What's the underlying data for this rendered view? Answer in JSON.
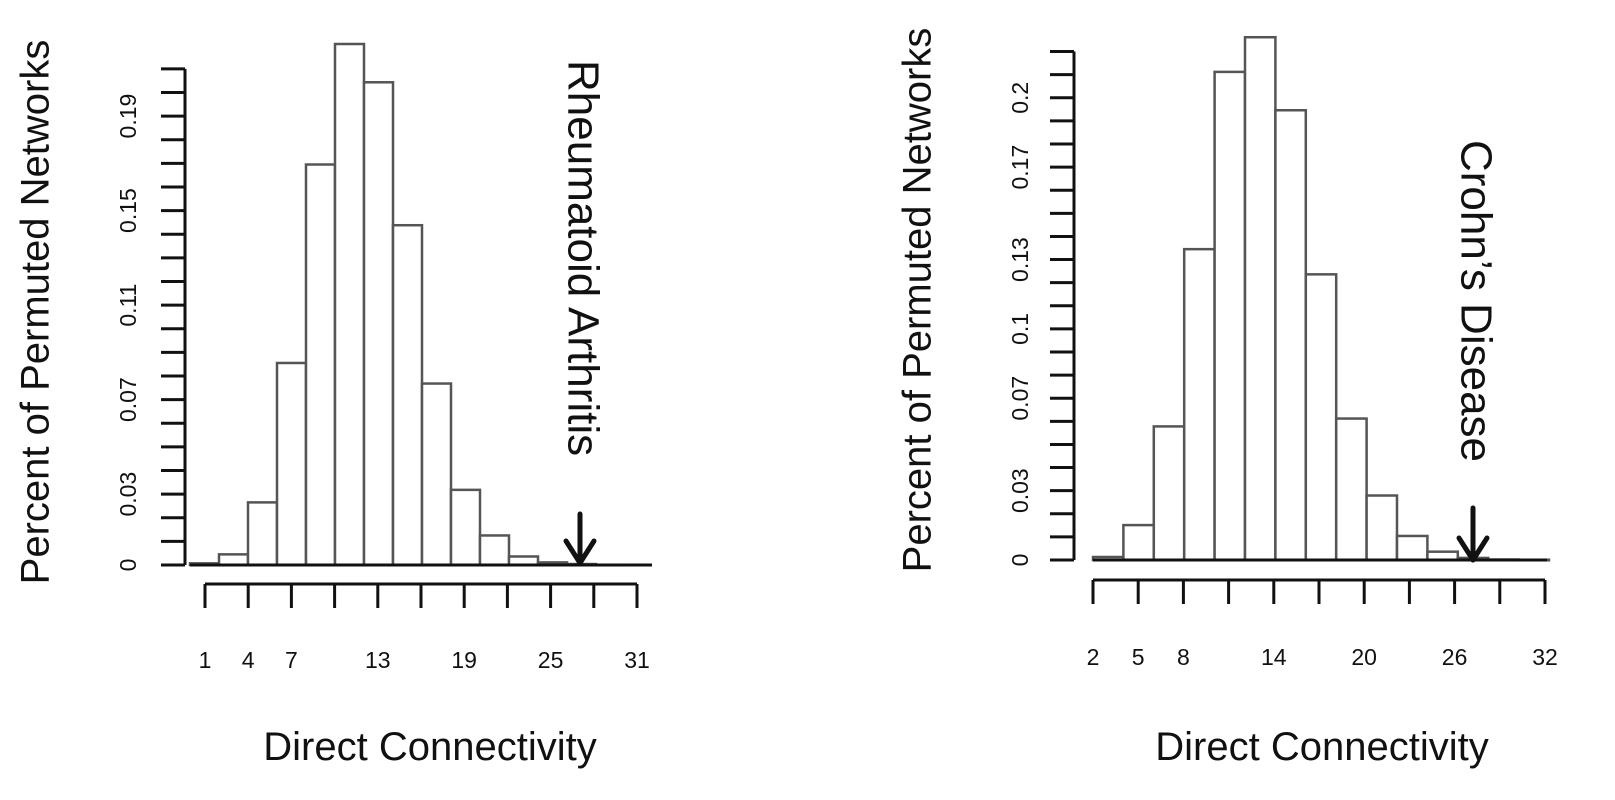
{
  "chart_data": [
    {
      "type": "bar",
      "title": "",
      "xlabel": "Direct Connectivity",
      "ylabel": "Percent of Permuted Networks",
      "x_ticks": [
        "1",
        "4",
        "7",
        "13",
        "19",
        "25",
        "31"
      ],
      "y_ticks": [
        "0",
        "0.03",
        "0.07",
        "0.11",
        "0.15",
        "0.19"
      ],
      "ylim": [
        0,
        0.215
      ],
      "bin_edges": [
        0,
        2,
        4,
        6,
        8,
        10,
        12,
        14,
        16,
        18,
        20,
        22,
        24,
        26,
        28,
        30
      ],
      "values": [
        0.0007,
        0.0045,
        0.0265,
        0.0855,
        0.1695,
        0.2205,
        0.2043,
        0.1438,
        0.0768,
        0.0318,
        0.0125,
        0.0036,
        0.0011,
        0.0004,
        0.0001
      ],
      "annotation": {
        "label": "Rheumatoid Arthritis",
        "x": 26.7
      },
      "grid": false
    },
    {
      "type": "bar",
      "title": "",
      "xlabel": "Direct Connectivity",
      "ylabel": "Percent of Permuted Networks",
      "x_ticks": [
        "2",
        "5",
        "8",
        "14",
        "20",
        "26",
        "32"
      ],
      "y_ticks": [
        "0",
        "0.03",
        "0.07",
        "0.1",
        "0.13",
        "0.17",
        "0.2"
      ],
      "ylim": [
        0,
        0.225
      ],
      "bin_edges": [
        2,
        4,
        6,
        8,
        10,
        12,
        14,
        16,
        18,
        20,
        22,
        24,
        26,
        28,
        30,
        32
      ],
      "values": [
        0.0013,
        0.0151,
        0.0578,
        0.1345,
        0.2112,
        0.2262,
        0.1946,
        0.1236,
        0.0612,
        0.0279,
        0.0104,
        0.0036,
        0.0009,
        0.0002,
        0.0001
      ],
      "annotation": {
        "label": "Crohn’s Disease",
        "x": 27.2
      },
      "grid": false
    }
  ]
}
